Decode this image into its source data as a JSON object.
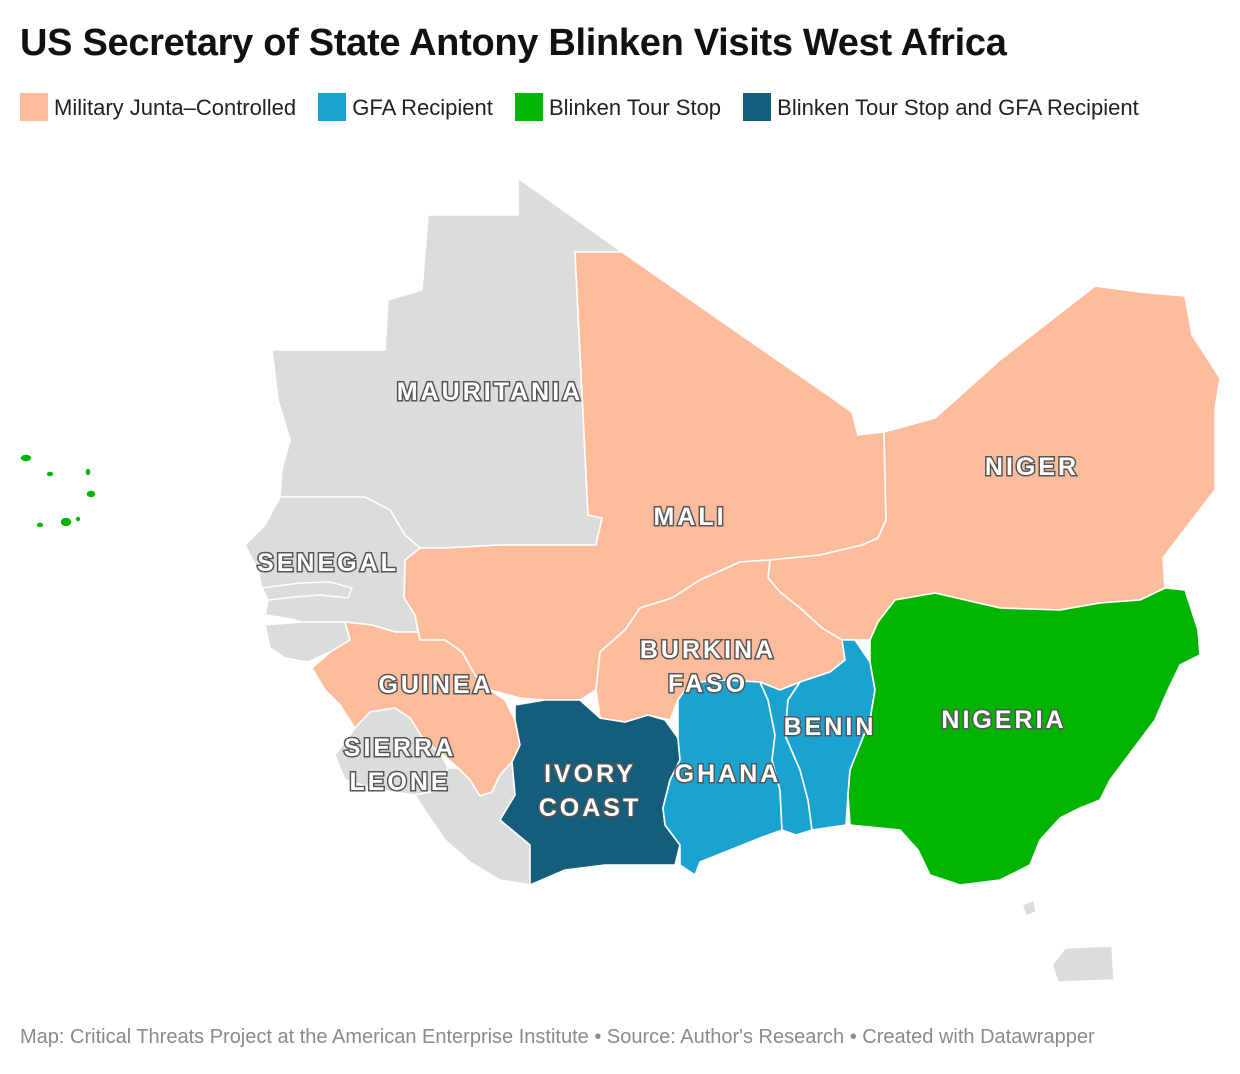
{
  "title": "US Secretary of State Antony Blinken Visits West Africa",
  "legend": [
    {
      "label": "Military Junta–Controlled",
      "color": "#fcbc9c"
    },
    {
      "label": "GFA Recipient",
      "color": "#1aa2d0"
    },
    {
      "label": "Blinken Tour Stop",
      "color": "#00b400"
    },
    {
      "label": "Blinken Tour Stop and GFA Recipient",
      "color": "#145e7c"
    }
  ],
  "colors": {
    "other": "#dcdcdc",
    "junta": "#fcbc9c",
    "gfa": "#1aa2d0",
    "tour": "#00b400",
    "tour_gfa": "#145e7c"
  },
  "countries": [
    {
      "name": "Mauritania",
      "category": "other",
      "label_lines": [
        "MAURITANIA"
      ]
    },
    {
      "name": "Mali",
      "category": "junta",
      "label_lines": [
        "MALI"
      ]
    },
    {
      "name": "Niger",
      "category": "junta",
      "label_lines": [
        "NIGER"
      ]
    },
    {
      "name": "Senegal",
      "category": "other",
      "label_lines": [
        "SENEGAL"
      ]
    },
    {
      "name": "Guinea",
      "category": "junta",
      "label_lines": [
        "GUINEA"
      ]
    },
    {
      "name": "Burkina Faso",
      "category": "junta",
      "label_lines": [
        "BURKINA",
        "FASO"
      ]
    },
    {
      "name": "Sierra Leone",
      "category": "other",
      "label_lines": [
        "SIERRA",
        "LEONE"
      ]
    },
    {
      "name": "Ivory Coast",
      "category": "tour_gfa",
      "label_lines": [
        "IVORY",
        "COAST"
      ]
    },
    {
      "name": "Ghana",
      "category": "gfa",
      "label_lines": [
        "GHANA"
      ]
    },
    {
      "name": "Benin",
      "category": "gfa",
      "label_lines": [
        "BENIN"
      ]
    },
    {
      "name": "Nigeria",
      "category": "tour",
      "label_lines": [
        "NIGERIA"
      ]
    },
    {
      "name": "Gambia",
      "category": "other",
      "label_lines": []
    },
    {
      "name": "Guinea-Bissau",
      "category": "other",
      "label_lines": []
    },
    {
      "name": "Liberia",
      "category": "other",
      "label_lines": []
    },
    {
      "name": "Togo",
      "category": "gfa",
      "label_lines": []
    },
    {
      "name": "Cape Verde",
      "category": "tour",
      "label_lines": []
    },
    {
      "name": "Equatorial Guinea",
      "category": "other",
      "label_lines": []
    }
  ],
  "footer": "Map: Critical Threats Project at the American Enterprise Institute • Source: Author's Research • Created with Datawrapper"
}
